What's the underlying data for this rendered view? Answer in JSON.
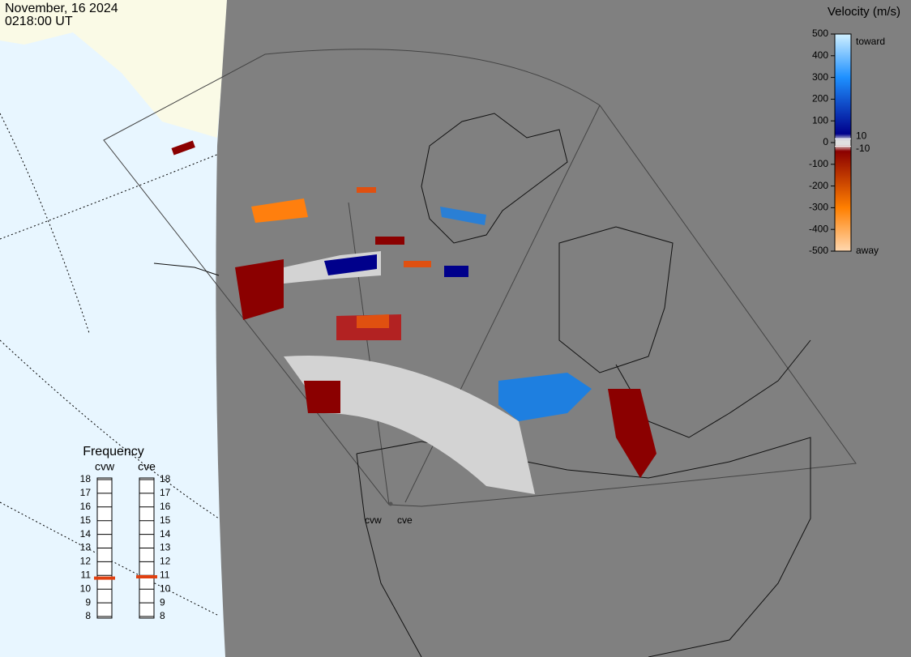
{
  "header": {
    "date": "November, 16 2024",
    "time": "0218:00 UT"
  },
  "velocity_scale": {
    "title": "Velocity (m/s)",
    "ticks": [
      500,
      400,
      300,
      200,
      100,
      0,
      -100,
      -200,
      -300,
      -400,
      -500
    ],
    "inner_ticks": [
      10,
      -10
    ],
    "toward": "toward",
    "away": "away"
  },
  "frequency": {
    "title": "Frequency",
    "ticks": [
      18,
      17,
      16,
      15,
      14,
      13,
      12,
      11,
      10,
      9,
      8
    ],
    "radars": [
      {
        "name": "cvw",
        "value": 10.8
      },
      {
        "name": "cve",
        "value": 10.9
      }
    ]
  },
  "radar_sites": [
    "cvw",
    "cve"
  ]
}
